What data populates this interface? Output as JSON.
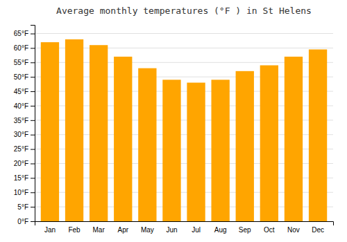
{
  "chart_data": {
    "type": "bar",
    "title": "Average monthly temperatures (°F ) in St Helens",
    "categories": [
      "Jan",
      "Feb",
      "Mar",
      "Apr",
      "May",
      "Jun",
      "Jul",
      "Aug",
      "Sep",
      "Oct",
      "Nov",
      "Dec"
    ],
    "values": [
      62,
      63,
      61,
      57,
      53,
      49,
      48,
      49,
      52,
      54,
      57,
      59.5
    ],
    "color": "#FFA500",
    "ylim": [
      0,
      68
    ],
    "yticks": [
      {
        "value": 0,
        "label": "0°F"
      },
      {
        "value": 5,
        "label": "5°F"
      },
      {
        "value": 10,
        "label": "10°F"
      },
      {
        "value": 15,
        "label": "15°F"
      },
      {
        "value": 20,
        "label": "20°F"
      },
      {
        "value": 25,
        "label": "25°F"
      },
      {
        "value": 30,
        "label": "30°F"
      },
      {
        "value": 35,
        "label": "35°F"
      },
      {
        "value": 40,
        "label": "40°F"
      },
      {
        "value": 45,
        "label": "45°F"
      },
      {
        "value": 50,
        "label": "50°F"
      },
      {
        "value": 55,
        "label": "55°F"
      },
      {
        "value": 60,
        "label": "60°F"
      },
      {
        "value": 65,
        "label": "65°F"
      }
    ],
    "grid": true
  }
}
